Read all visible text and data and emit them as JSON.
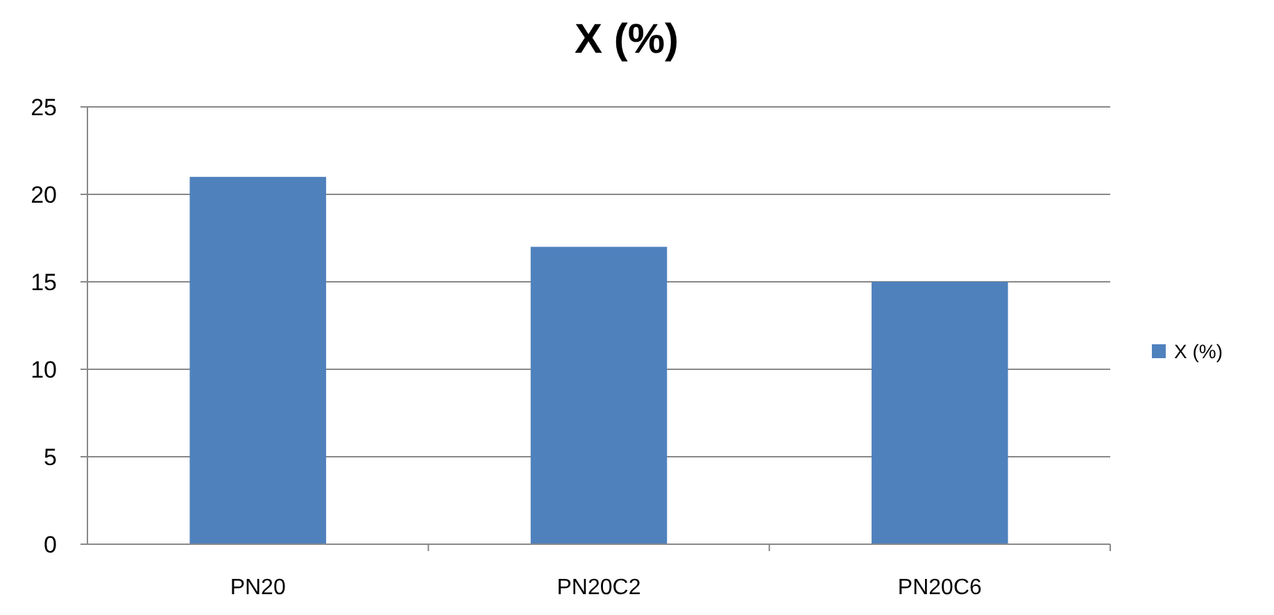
{
  "chart_data": {
    "type": "bar",
    "title": "X (%)",
    "categories": [
      "PN20",
      "PN20C2",
      "PN20C6"
    ],
    "series": [
      {
        "name": "X (%)",
        "color": "#4f81bd",
        "values": [
          21,
          17,
          15
        ]
      }
    ],
    "ylim": [
      0,
      25
    ],
    "yticks": [
      0,
      5,
      10,
      15,
      20,
      25
    ],
    "grid": "y",
    "legend": "right"
  }
}
